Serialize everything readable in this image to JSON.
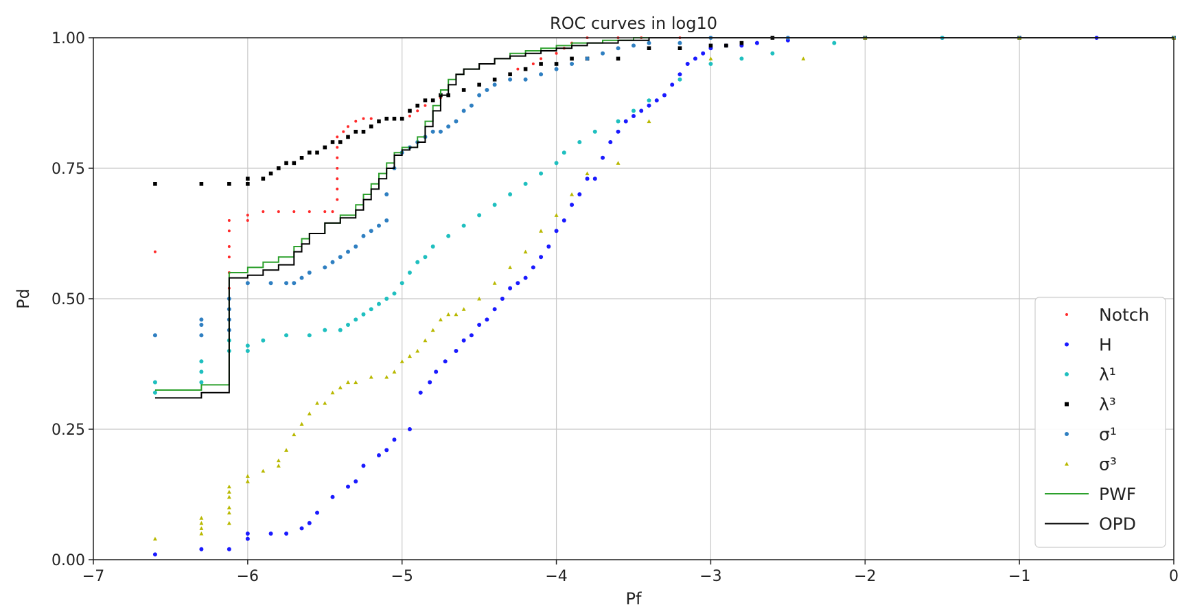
{
  "chart_data": {
    "type": "scatter",
    "title": "ROC curves in log10",
    "xlabel": "Pf",
    "ylabel": "Pd",
    "xlim": [
      -7,
      0
    ],
    "ylim": [
      0,
      1
    ],
    "grid": true,
    "xticks": [
      "−7",
      "−6",
      "−5",
      "−4",
      "−3",
      "−2",
      "−1",
      "0"
    ],
    "yticks": [
      "0.00",
      "0.25",
      "0.50",
      "0.75",
      "1.00"
    ],
    "legend_position": "lower-right",
    "series": [
      {
        "name": "Notch",
        "style": "points",
        "color": "#ff2a2a",
        "x": [
          -6.6,
          -6.12,
          -6.12,
          -6.12,
          -6.12,
          -6.12,
          -6.12,
          -6.0,
          -6.0,
          -5.9,
          -5.8,
          -5.7,
          -5.6,
          -5.5,
          -5.45,
          -5.42,
          -5.42,
          -5.42,
          -5.42,
          -5.42,
          -5.42,
          -5.42,
          -5.38,
          -5.35,
          -5.3,
          -5.25,
          -5.2,
          -5.1,
          -5.0,
          -4.95,
          -4.9,
          -4.85,
          -4.8,
          -4.75,
          -4.7,
          -4.6,
          -4.5,
          -4.4,
          -4.3,
          -4.25,
          -4.15,
          -4.1,
          -4.0,
          -3.95,
          -3.9,
          -3.8,
          -3.6,
          -3.45,
          -3.2,
          -3.0,
          -2.5,
          -2.0,
          -1.0,
          0.0
        ],
        "y": [
          0.59,
          0.52,
          0.55,
          0.58,
          0.6,
          0.63,
          0.65,
          0.65,
          0.66,
          0.667,
          0.667,
          0.667,
          0.667,
          0.667,
          0.667,
          0.69,
          0.71,
          0.73,
          0.75,
          0.77,
          0.79,
          0.81,
          0.82,
          0.83,
          0.84,
          0.845,
          0.845,
          0.845,
          0.845,
          0.85,
          0.86,
          0.87,
          0.88,
          0.885,
          0.89,
          0.9,
          0.91,
          0.92,
          0.93,
          0.94,
          0.95,
          0.96,
          0.97,
          0.98,
          0.99,
          1.0,
          1.0,
          1.0,
          1.0,
          1.0,
          1.0,
          1.0,
          1.0,
          1.0
        ]
      },
      {
        "name": "H",
        "style": "points",
        "color": "#1a1aff",
        "x": [
          -6.6,
          -6.3,
          -6.12,
          -6.0,
          -6.0,
          -5.85,
          -5.75,
          -5.65,
          -5.6,
          -5.55,
          -5.45,
          -5.35,
          -5.3,
          -5.25,
          -5.15,
          -5.1,
          -5.05,
          -4.95,
          -4.88,
          -4.82,
          -4.78,
          -4.72,
          -4.65,
          -4.6,
          -4.55,
          -4.5,
          -4.45,
          -4.4,
          -4.35,
          -4.3,
          -4.25,
          -4.2,
          -4.15,
          -4.1,
          -4.05,
          -4.0,
          -3.95,
          -3.9,
          -3.85,
          -3.8,
          -3.75,
          -3.7,
          -3.65,
          -3.6,
          -3.55,
          -3.5,
          -3.45,
          -3.4,
          -3.35,
          -3.3,
          -3.25,
          -3.2,
          -3.15,
          -3.1,
          -3.05,
          -3.0,
          -2.9,
          -2.8,
          -2.7,
          -2.5,
          -2.0,
          -1.5,
          -1.0,
          -0.5,
          0.0
        ],
        "y": [
          0.01,
          0.02,
          0.02,
          0.04,
          0.05,
          0.05,
          0.05,
          0.06,
          0.07,
          0.09,
          0.12,
          0.14,
          0.15,
          0.18,
          0.2,
          0.21,
          0.23,
          0.25,
          0.32,
          0.34,
          0.36,
          0.38,
          0.4,
          0.42,
          0.43,
          0.45,
          0.46,
          0.48,
          0.5,
          0.52,
          0.53,
          0.54,
          0.56,
          0.58,
          0.6,
          0.63,
          0.65,
          0.68,
          0.7,
          0.73,
          0.73,
          0.77,
          0.8,
          0.82,
          0.84,
          0.85,
          0.86,
          0.87,
          0.88,
          0.89,
          0.91,
          0.93,
          0.95,
          0.96,
          0.97,
          0.98,
          0.985,
          0.985,
          0.99,
          0.995,
          1.0,
          1.0,
          1.0,
          1.0,
          1.0
        ]
      },
      {
        "name": "λ¹",
        "style": "points",
        "color": "#1fbfbf",
        "x": [
          -6.6,
          -6.6,
          -6.3,
          -6.3,
          -6.3,
          -6.12,
          -6.12,
          -6.0,
          -6.0,
          -5.9,
          -5.75,
          -5.6,
          -5.5,
          -5.4,
          -5.35,
          -5.3,
          -5.25,
          -5.2,
          -5.15,
          -5.1,
          -5.05,
          -5.0,
          -4.95,
          -4.9,
          -4.85,
          -4.8,
          -4.7,
          -4.6,
          -4.5,
          -4.4,
          -4.3,
          -4.2,
          -4.1,
          -4.0,
          -3.95,
          -3.85,
          -3.75,
          -3.6,
          -3.5,
          -3.4,
          -3.2,
          -3.0,
          -2.8,
          -2.6,
          -2.2,
          -1.5,
          -1.0,
          0.0
        ],
        "y": [
          0.32,
          0.34,
          0.34,
          0.36,
          0.38,
          0.4,
          0.42,
          0.4,
          0.41,
          0.42,
          0.43,
          0.43,
          0.44,
          0.44,
          0.45,
          0.46,
          0.47,
          0.48,
          0.49,
          0.5,
          0.51,
          0.53,
          0.55,
          0.57,
          0.58,
          0.6,
          0.62,
          0.64,
          0.66,
          0.68,
          0.7,
          0.72,
          0.74,
          0.76,
          0.78,
          0.8,
          0.82,
          0.84,
          0.86,
          0.88,
          0.92,
          0.95,
          0.96,
          0.97,
          0.99,
          1.0,
          1.0,
          1.0
        ]
      },
      {
        "name": "λ³",
        "style": "points",
        "color": "#000000",
        "x": [
          -6.6,
          -6.3,
          -6.12,
          -6.0,
          -6.0,
          -5.9,
          -5.85,
          -5.8,
          -5.75,
          -5.7,
          -5.65,
          -5.6,
          -5.55,
          -5.5,
          -5.45,
          -5.4,
          -5.35,
          -5.3,
          -5.25,
          -5.2,
          -5.15,
          -5.1,
          -5.05,
          -5.0,
          -4.95,
          -4.9,
          -4.85,
          -4.8,
          -4.75,
          -4.7,
          -4.6,
          -4.5,
          -4.4,
          -4.3,
          -4.2,
          -4.1,
          -4.0,
          -3.9,
          -3.8,
          -3.6,
          -3.4,
          -3.2,
          -3.0,
          -2.9,
          -2.8,
          -2.6,
          -2.0,
          -1.0,
          0.0
        ],
        "y": [
          0.72,
          0.72,
          0.72,
          0.72,
          0.73,
          0.73,
          0.74,
          0.75,
          0.76,
          0.76,
          0.77,
          0.78,
          0.78,
          0.79,
          0.8,
          0.8,
          0.81,
          0.82,
          0.82,
          0.83,
          0.84,
          0.845,
          0.845,
          0.845,
          0.86,
          0.87,
          0.88,
          0.88,
          0.89,
          0.89,
          0.9,
          0.91,
          0.92,
          0.93,
          0.94,
          0.95,
          0.95,
          0.96,
          0.96,
          0.96,
          0.98,
          0.98,
          0.985,
          0.985,
          0.99,
          1.0,
          1.0,
          1.0,
          1.0
        ]
      },
      {
        "name": "σ¹",
        "style": "points",
        "color": "#2f7fc1",
        "x": [
          -6.6,
          -6.3,
          -6.3,
          -6.3,
          -6.12,
          -6.12,
          -6.12,
          -6.12,
          -6.0,
          -5.85,
          -5.75,
          -5.7,
          -5.65,
          -5.6,
          -5.5,
          -5.45,
          -5.4,
          -5.35,
          -5.3,
          -5.25,
          -5.2,
          -5.15,
          -5.1,
          -5.1,
          -5.05,
          -5.0,
          -4.95,
          -4.9,
          -4.85,
          -4.8,
          -4.75,
          -4.7,
          -4.65,
          -4.6,
          -4.55,
          -4.5,
          -4.45,
          -4.4,
          -4.3,
          -4.2,
          -4.1,
          -4.0,
          -3.9,
          -3.8,
          -3.7,
          -3.6,
          -3.5,
          -3.4,
          -3.2,
          -3.0,
          -2.5,
          -2.0,
          -1.0,
          0.0
        ],
        "y": [
          0.43,
          0.43,
          0.45,
          0.46,
          0.44,
          0.46,
          0.48,
          0.5,
          0.53,
          0.53,
          0.53,
          0.53,
          0.54,
          0.55,
          0.56,
          0.57,
          0.58,
          0.59,
          0.6,
          0.62,
          0.63,
          0.64,
          0.65,
          0.7,
          0.75,
          0.78,
          0.79,
          0.8,
          0.81,
          0.82,
          0.82,
          0.83,
          0.84,
          0.86,
          0.87,
          0.89,
          0.9,
          0.91,
          0.92,
          0.92,
          0.93,
          0.94,
          0.95,
          0.96,
          0.97,
          0.98,
          0.985,
          0.99,
          0.99,
          1.0,
          1.0,
          1.0,
          1.0,
          1.0
        ]
      },
      {
        "name": "σ³",
        "style": "points",
        "color": "#b8b800",
        "x": [
          -6.6,
          -6.3,
          -6.3,
          -6.3,
          -6.3,
          -6.12,
          -6.12,
          -6.12,
          -6.12,
          -6.12,
          -6.12,
          -6.0,
          -6.0,
          -5.9,
          -5.8,
          -5.8,
          -5.75,
          -5.7,
          -5.65,
          -5.6,
          -5.55,
          -5.5,
          -5.45,
          -5.4,
          -5.35,
          -5.3,
          -5.2,
          -5.1,
          -5.05,
          -5.0,
          -4.95,
          -4.9,
          -4.85,
          -4.8,
          -4.75,
          -4.7,
          -4.65,
          -4.6,
          -4.5,
          -4.4,
          -4.3,
          -4.2,
          -4.1,
          -4.0,
          -3.9,
          -3.8,
          -3.6,
          -3.4,
          -3.0,
          -2.4,
          -2.0,
          -1.0,
          0.0
        ],
        "y": [
          0.04,
          0.05,
          0.06,
          0.07,
          0.08,
          0.07,
          0.09,
          0.1,
          0.12,
          0.13,
          0.14,
          0.15,
          0.16,
          0.17,
          0.18,
          0.19,
          0.21,
          0.24,
          0.26,
          0.28,
          0.3,
          0.3,
          0.32,
          0.33,
          0.34,
          0.34,
          0.35,
          0.35,
          0.36,
          0.38,
          0.39,
          0.4,
          0.42,
          0.44,
          0.46,
          0.47,
          0.47,
          0.48,
          0.5,
          0.53,
          0.56,
          0.59,
          0.63,
          0.66,
          0.7,
          0.74,
          0.76,
          0.84,
          0.96,
          0.96,
          1.0,
          1.0,
          1.0
        ]
      },
      {
        "name": "PWF",
        "style": "step",
        "color": "#2ca02c",
        "x": [
          -6.6,
          -6.3,
          -6.12,
          -6.12,
          -6.0,
          -5.9,
          -5.8,
          -5.7,
          -5.65,
          -5.6,
          -5.5,
          -5.4,
          -5.3,
          -5.25,
          -5.2,
          -5.15,
          -5.1,
          -5.05,
          -5.0,
          -4.95,
          -4.9,
          -4.85,
          -4.8,
          -4.75,
          -4.7,
          -4.65,
          -4.6,
          -4.5,
          -4.4,
          -4.3,
          -4.2,
          -4.1,
          -4.0,
          -3.9,
          -3.8,
          -3.7,
          -3.6,
          -3.5,
          -3.4,
          -3.0,
          0.0
        ],
        "y": [
          0.325,
          0.335,
          0.335,
          0.55,
          0.56,
          0.57,
          0.58,
          0.6,
          0.615,
          0.625,
          0.645,
          0.66,
          0.68,
          0.7,
          0.72,
          0.74,
          0.76,
          0.78,
          0.79,
          0.79,
          0.81,
          0.84,
          0.87,
          0.9,
          0.92,
          0.93,
          0.94,
          0.95,
          0.96,
          0.97,
          0.975,
          0.98,
          0.985,
          0.99,
          0.99,
          0.995,
          0.995,
          1.0,
          1.0,
          1.0,
          1.0
        ]
      },
      {
        "name": "OPD",
        "style": "step",
        "color": "#000000",
        "x": [
          -6.6,
          -6.3,
          -6.12,
          -6.12,
          -6.0,
          -5.9,
          -5.8,
          -5.7,
          -5.65,
          -5.6,
          -5.5,
          -5.4,
          -5.3,
          -5.25,
          -5.2,
          -5.15,
          -5.1,
          -5.05,
          -5.0,
          -4.95,
          -4.9,
          -4.85,
          -4.8,
          -4.75,
          -4.7,
          -4.65,
          -4.6,
          -4.5,
          -4.4,
          -4.3,
          -4.2,
          -4.1,
          -4.0,
          -3.9,
          -3.8,
          -3.7,
          -3.6,
          -3.5,
          -3.4,
          -3.0,
          0.0
        ],
        "y": [
          0.31,
          0.32,
          0.32,
          0.54,
          0.545,
          0.555,
          0.565,
          0.59,
          0.605,
          0.625,
          0.645,
          0.655,
          0.67,
          0.69,
          0.71,
          0.73,
          0.75,
          0.775,
          0.785,
          0.79,
          0.8,
          0.83,
          0.86,
          0.89,
          0.91,
          0.93,
          0.94,
          0.95,
          0.96,
          0.965,
          0.97,
          0.975,
          0.98,
          0.985,
          0.99,
          0.99,
          0.995,
          0.995,
          1.0,
          1.0,
          1.0
        ]
      }
    ]
  }
}
